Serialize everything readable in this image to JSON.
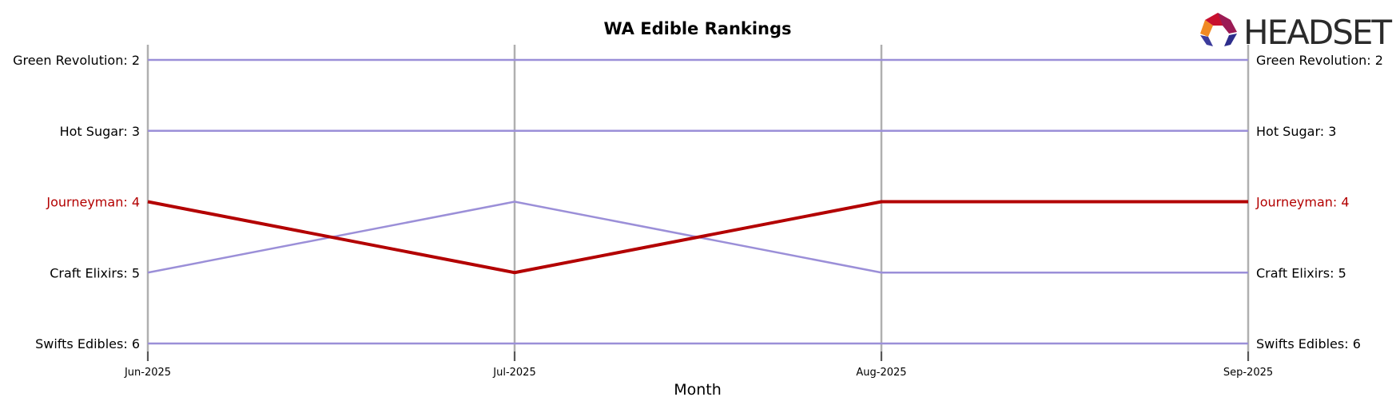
{
  "chart_data": {
    "type": "line",
    "title": "WA Edible Rankings",
    "xlabel": "Month",
    "ylabel": "",
    "categories": [
      "Jun-2025",
      "Jul-2025",
      "Aug-2025",
      "Sep-2025"
    ],
    "ylim": [
      6,
      2
    ],
    "y_inverted": true,
    "grid": "vertical",
    "series": [
      {
        "name": "Green Revolution",
        "values": [
          2,
          2,
          2,
          2
        ],
        "color": "#9b8fd8",
        "highlight": false
      },
      {
        "name": "Hot Sugar",
        "values": [
          3,
          3,
          3,
          3
        ],
        "color": "#9b8fd8",
        "highlight": false
      },
      {
        "name": "Journeyman",
        "values": [
          4,
          5,
          4,
          4
        ],
        "color": "#b30000",
        "highlight": true
      },
      {
        "name": "Craft Elixirs",
        "values": [
          5,
          4,
          5,
          5
        ],
        "color": "#9b8fd8",
        "highlight": false
      },
      {
        "name": "Swifts Edibles",
        "values": [
          6,
          6,
          6,
          6
        ],
        "color": "#9b8fd8",
        "highlight": false
      }
    ],
    "left_labels": [
      "Green Revolution: 2",
      "Hot Sugar: 3",
      "Journeyman: 4",
      "Craft Elixirs: 5",
      "Swifts Edibles: 6"
    ],
    "right_labels": [
      "Green Revolution: 2",
      "Hot Sugar: 3",
      "Journeyman: 4",
      "Craft Elixirs: 5",
      "Swifts Edibles: 6"
    ]
  },
  "brand": {
    "name": "HEADSET",
    "logo_icon": "headset-logo-icon"
  },
  "colors": {
    "highlight": "#b30000",
    "series": "#9b8fd8",
    "gridline": "#b0b0b0",
    "text": "#000000"
  }
}
